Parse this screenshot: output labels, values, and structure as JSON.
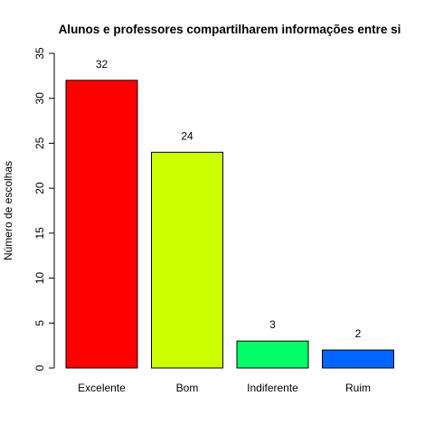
{
  "chart_data": {
    "type": "bar",
    "title": "Alunos e professores compartilharem informações entre si",
    "xlabel": "",
    "ylabel": "Número de escolhas",
    "categories": [
      "Excelente",
      "Bom",
      "Indiferente",
      "Ruim"
    ],
    "values": [
      32,
      24,
      3,
      2
    ],
    "colors": [
      "#FF0000",
      "#CCFF00",
      "#00FF66",
      "#0066FF"
    ],
    "ylim": [
      0,
      35
    ],
    "yticks": [
      0,
      5,
      10,
      15,
      20,
      25,
      30,
      35
    ],
    "data_labels": [
      "32",
      "24",
      "3",
      "2"
    ],
    "grid": false,
    "legend": "none"
  }
}
